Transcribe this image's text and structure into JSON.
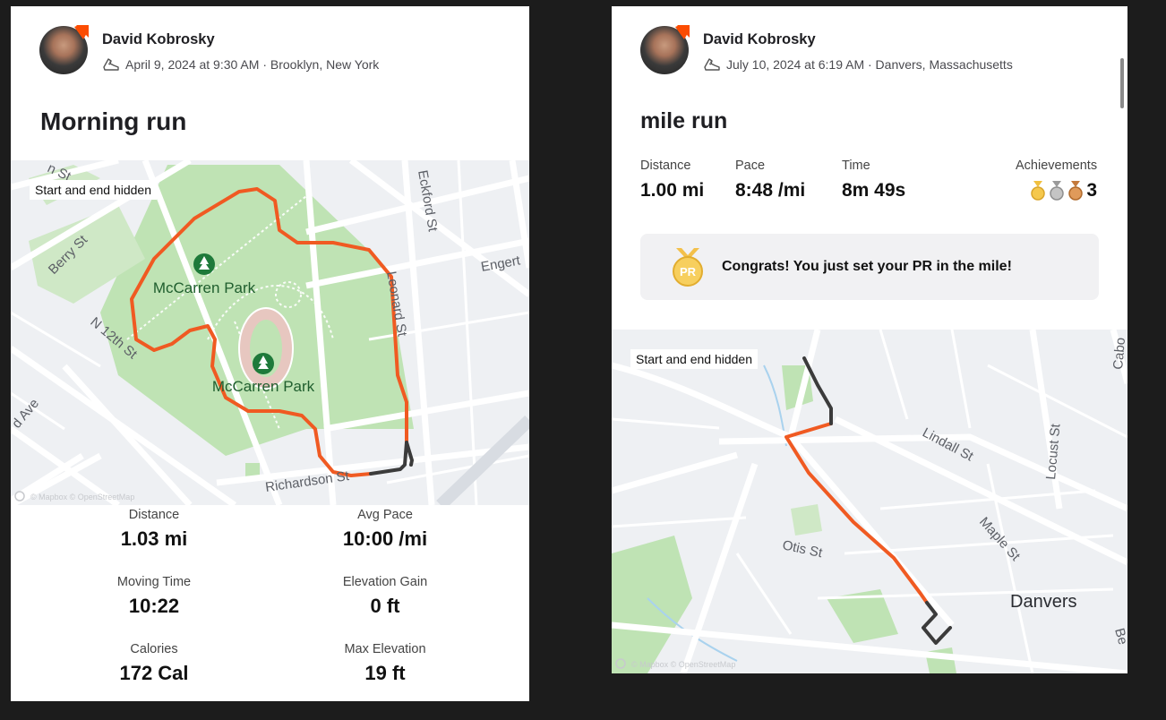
{
  "card1": {
    "athlete": "David Kobrosky",
    "meta": "April 9, 2024 at 9:30 AM · Brooklyn, New York",
    "title": "Morning run",
    "map": {
      "hidden_label": "Start and end hidden",
      "streets": [
        "n St",
        "Berry St",
        "N 12th St",
        "d Ave",
        "Eckford St",
        "Leonard St",
        "Engert",
        "Richardson St"
      ],
      "parks": [
        "McCarren Park",
        "McCarren Park"
      ],
      "attribution": "© Mapbox © OpenStreetMap"
    },
    "stats": [
      {
        "label": "Distance",
        "value": "1.03 mi"
      },
      {
        "label": "Avg Pace",
        "value": "10:00 /mi"
      },
      {
        "label": "Moving Time",
        "value": "10:22"
      },
      {
        "label": "Elevation Gain",
        "value": "0 ft"
      },
      {
        "label": "Calories",
        "value": "172 Cal"
      },
      {
        "label": "Max Elevation",
        "value": "19 ft"
      }
    ]
  },
  "card2": {
    "athlete": "David Kobrosky",
    "meta": "July 10, 2024 at 6:19 AM · Danvers, Massachusetts",
    "title": "mile run",
    "stats": [
      {
        "label": "Distance",
        "value": "1.00 mi"
      },
      {
        "label": "Pace",
        "value": "8:48 /mi"
      },
      {
        "label": "Time",
        "value": "8m 49s"
      }
    ],
    "achievements": {
      "label": "Achievements",
      "count": "3"
    },
    "pr": {
      "badge": "PR",
      "text": "Congrats! You just set your PR in the mile!"
    },
    "map": {
      "hidden_label": "Start and end hidden",
      "streets": [
        "Lindall St",
        "Locust St",
        "Maple St",
        "Otis St",
        "Cabo",
        "Be"
      ],
      "place": "Danvers",
      "attribution": "© Mapbox © OpenStreetMap"
    }
  },
  "colors": {
    "route": "#f05a22",
    "hidden_route": "#3b3b3b",
    "park": "#bfe3b4",
    "road": "#ffffff",
    "map_bg": "#eef0f3",
    "page_bg": "#1c1c1c",
    "strava_orange": "#fc4c02"
  },
  "icons": [
    "avatar",
    "strava-badge-icon",
    "shoe-icon",
    "park-tree-icon",
    "mapbox-logo-icon",
    "gold-medal-icon",
    "silver-medal-icon",
    "bronze-medal-icon",
    "pr-medal-icon"
  ]
}
